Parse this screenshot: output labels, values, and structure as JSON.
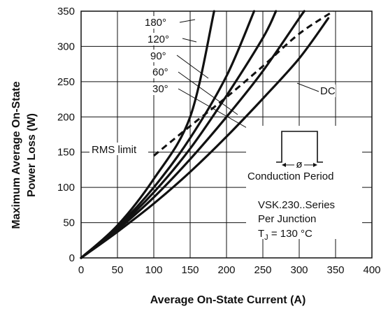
{
  "chart_data": {
    "type": "line",
    "xlabel": "Average On-State Current (A)",
    "ylabel_lines": [
      "Maximum Average On-State",
      "Power Loss (W)"
    ],
    "xlim": [
      0,
      400
    ],
    "ylim": [
      0,
      350
    ],
    "x_ticks": [
      0,
      50,
      100,
      150,
      200,
      250,
      300,
      350,
      400
    ],
    "y_ticks": [
      0,
      50,
      100,
      150,
      200,
      250,
      300,
      350
    ],
    "grid": true,
    "series": [
      {
        "name": "180°",
        "style": "solid",
        "points": [
          [
            0,
            0
          ],
          [
            50,
            46
          ],
          [
            100,
            112
          ],
          [
            150,
            200
          ],
          [
            183,
            350
          ]
        ]
      },
      {
        "name": "120°",
        "style": "solid",
        "points": [
          [
            0,
            0
          ],
          [
            50,
            44
          ],
          [
            100,
            100
          ],
          [
            150,
            170
          ],
          [
            200,
            258
          ],
          [
            238,
            350
          ]
        ]
      },
      {
        "name": "90°",
        "style": "solid",
        "points": [
          [
            0,
            0
          ],
          [
            50,
            42
          ],
          [
            100,
            93
          ],
          [
            150,
            155
          ],
          [
            200,
            230
          ],
          [
            250,
            312
          ],
          [
            268,
            350
          ]
        ]
      },
      {
        "name": "60°",
        "style": "solid",
        "points": [
          [
            0,
            0
          ],
          [
            50,
            40
          ],
          [
            100,
            86
          ],
          [
            150,
            140
          ],
          [
            200,
            200
          ],
          [
            250,
            265
          ],
          [
            300,
            340
          ],
          [
            307,
            350
          ]
        ]
      },
      {
        "name": "30°",
        "style": "solid",
        "points": [
          [
            0,
            0
          ],
          [
            50,
            37
          ],
          [
            100,
            77
          ],
          [
            150,
            122
          ],
          [
            200,
            172
          ],
          [
            250,
            226
          ],
          [
            300,
            283
          ],
          [
            340,
            340
          ]
        ]
      },
      {
        "name": "DC",
        "style": "dashed",
        "points": [
          [
            100,
            145
          ],
          [
            150,
            187
          ],
          [
            200,
            228
          ],
          [
            250,
            272
          ],
          [
            300,
            318
          ],
          [
            347,
            350
          ]
        ]
      }
    ],
    "annotations": {
      "rms_limit": "RMS limit",
      "conduction_period": "Conduction Period",
      "phi": "ø",
      "series_line": "VSK.230..Series",
      "junction_line": "Per Junction",
      "tj_prefix": "T",
      "tj_sub": "J",
      "tj_suffix": " = 130 °C"
    }
  }
}
